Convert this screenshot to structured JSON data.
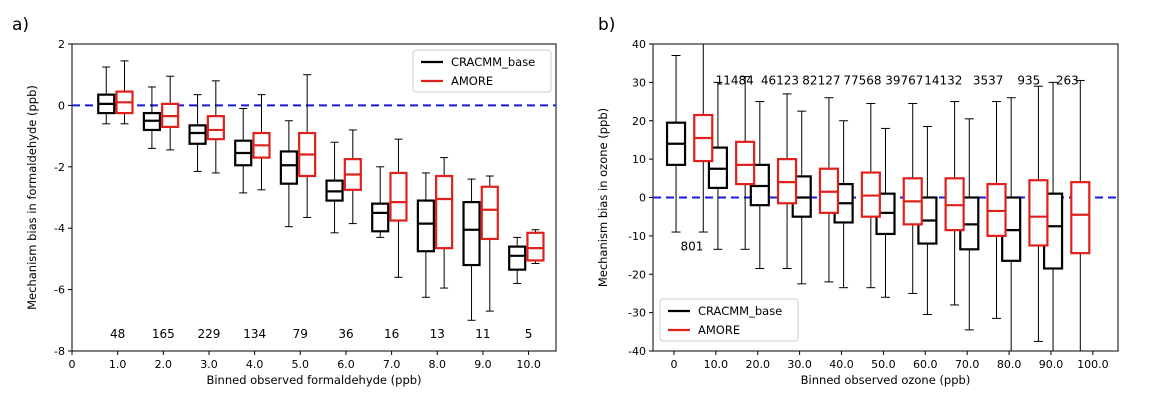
{
  "chart_data": [
    {
      "panel_label": "a)",
      "type": "box",
      "xlabel": "Binned observed formaldehyde (ppb)",
      "ylabel": "Mechanism bias in formaldehyde (ppb)",
      "xlim": [
        0,
        10.6
      ],
      "ylim": [
        -8,
        2
      ],
      "xticks": [
        0,
        1.0,
        2.0,
        3.0,
        4.0,
        5.0,
        6.0,
        7.0,
        8.0,
        9.0,
        10.0
      ],
      "xtick_labels": [
        "0",
        "1.0",
        "2.0",
        "3.0",
        "4.0",
        "5.0",
        "6.0",
        "7.0",
        "8.0",
        "9.0",
        "10.0"
      ],
      "yticks": [
        -8,
        -6,
        -4,
        -2,
        0,
        2
      ],
      "zero_line": 0,
      "legend": {
        "placement": "top-right",
        "entries": [
          "CRACMM_base",
          "AMORE"
        ]
      },
      "count_label_y": -7.45,
      "counts": [
        {
          "x": 1.0,
          "text": "48"
        },
        {
          "x": 2.0,
          "text": "165"
        },
        {
          "x": 3.0,
          "text": "229"
        },
        {
          "x": 4.0,
          "text": "134"
        },
        {
          "x": 5.0,
          "text": "79"
        },
        {
          "x": 6.0,
          "text": "36"
        },
        {
          "x": 7.0,
          "text": "16"
        },
        {
          "x": 8.0,
          "text": "13"
        },
        {
          "x": 9.0,
          "text": "11"
        },
        {
          "x": 10.0,
          "text": "5"
        }
      ],
      "series": [
        {
          "name": "CRACMM_base",
          "color": "#000000",
          "boxes": [
            {
              "x": 0.75,
              "whislo": -0.6,
              "q1": -0.25,
              "med": 0.05,
              "q3": 0.35,
              "whishi": 1.25
            },
            {
              "x": 1.75,
              "whislo": -1.4,
              "q1": -0.8,
              "med": -0.5,
              "q3": -0.25,
              "whishi": 0.6
            },
            {
              "x": 2.75,
              "whislo": -2.15,
              "q1": -1.25,
              "med": -0.9,
              "q3": -0.65,
              "whishi": 0.35
            },
            {
              "x": 3.75,
              "whislo": -2.85,
              "q1": -1.95,
              "med": -1.55,
              "q3": -1.15,
              "whishi": -0.1
            },
            {
              "x": 4.75,
              "whislo": -3.95,
              "q1": -2.55,
              "med": -1.95,
              "q3": -1.5,
              "whishi": -0.5
            },
            {
              "x": 5.75,
              "whislo": -4.15,
              "q1": -3.1,
              "med": -2.8,
              "q3": -2.45,
              "whishi": -1.2
            },
            {
              "x": 6.75,
              "whislo": -4.3,
              "q1": -4.1,
              "med": -3.5,
              "q3": -3.2,
              "whishi": -2.0
            },
            {
              "x": 7.75,
              "whislo": -6.25,
              "q1": -4.75,
              "med": -3.85,
              "q3": -3.1,
              "whishi": -2.2
            },
            {
              "x": 8.75,
              "whislo": -7.0,
              "q1": -5.2,
              "med": -4.05,
              "q3": -3.15,
              "whishi": -2.4
            },
            {
              "x": 9.75,
              "whislo": -5.8,
              "q1": -5.35,
              "med": -4.9,
              "q3": -4.6,
              "whishi": -4.3
            }
          ]
        },
        {
          "name": "AMORE",
          "color": "#e0201c",
          "boxes": [
            {
              "x": 1.15,
              "whislo": -0.6,
              "q1": -0.25,
              "med": 0.1,
              "q3": 0.45,
              "whishi": 1.45
            },
            {
              "x": 2.15,
              "whislo": -1.45,
              "q1": -0.7,
              "med": -0.35,
              "q3": 0.05,
              "whishi": 0.95
            },
            {
              "x": 3.15,
              "whislo": -2.2,
              "q1": -1.1,
              "med": -0.8,
              "q3": -0.35,
              "whishi": 0.8
            },
            {
              "x": 4.15,
              "whislo": -2.75,
              "q1": -1.7,
              "med": -1.3,
              "q3": -0.9,
              "whishi": 0.35
            },
            {
              "x": 5.15,
              "whislo": -3.65,
              "q1": -2.3,
              "med": -1.6,
              "q3": -0.9,
              "whishi": 1.0
            },
            {
              "x": 6.15,
              "whislo": -3.85,
              "q1": -2.75,
              "med": -2.25,
              "q3": -1.75,
              "whishi": -0.8
            },
            {
              "x": 7.15,
              "whislo": -5.6,
              "q1": -3.75,
              "med": -3.15,
              "q3": -2.2,
              "whishi": -1.1
            },
            {
              "x": 8.15,
              "whislo": -5.95,
              "q1": -4.65,
              "med": -3.05,
              "q3": -2.3,
              "whishi": -1.7
            },
            {
              "x": 9.15,
              "whislo": -6.7,
              "q1": -4.35,
              "med": -3.4,
              "q3": -2.65,
              "whishi": -2.3
            },
            {
              "x": 10.15,
              "whislo": -5.15,
              "q1": -5.05,
              "med": -4.65,
              "q3": -4.15,
              "whishi": -4.05
            }
          ]
        }
      ]
    },
    {
      "panel_label": "b)",
      "type": "box",
      "xlabel": "Binned observed ozone (ppb)",
      "ylabel": "Mechanism bias in ozone (ppb)",
      "xlim": [
        -5,
        106
      ],
      "ylim": [
        -40,
        40
      ],
      "xticks": [
        0,
        10,
        20,
        30,
        40,
        50,
        60,
        70,
        80,
        90,
        100
      ],
      "xtick_labels": [
        "0",
        "10.0",
        "20.0",
        "30.0",
        "40.0",
        "50.0",
        "60.0",
        "70.0",
        "80.0",
        "90.0",
        "100.0"
      ],
      "yticks": [
        -40,
        -30,
        -20,
        -10,
        0,
        10,
        20,
        30,
        40
      ],
      "zero_line": 0,
      "legend": {
        "placement": "bottom-left",
        "entries": [
          "CRACMM_base",
          "AMORE"
        ]
      },
      "counts": [
        {
          "x": 4.3,
          "y": -12.8,
          "text": "801"
        },
        {
          "x": 14.5,
          "y": 30.5,
          "text": "11484"
        },
        {
          "x": 25.3,
          "y": 30.5,
          "text": "46123"
        },
        {
          "x": 35.2,
          "y": 30.5,
          "text": "82127"
        },
        {
          "x": 45.0,
          "y": 30.5,
          "text": "77568"
        },
        {
          "x": 55.0,
          "y": 30.5,
          "text": "39767"
        },
        {
          "x": 64.3,
          "y": 30.5,
          "text": "14132"
        },
        {
          "x": 75.0,
          "y": 30.5,
          "text": "3537"
        },
        {
          "x": 84.7,
          "y": 30.5,
          "text": "935"
        },
        {
          "x": 93.9,
          "y": 30.5,
          "text": "263"
        }
      ],
      "series": [
        {
          "name": "CRACMM_base",
          "color": "#000000",
          "boxes": [
            {
              "x": 0.5,
              "whislo": -9,
              "q1": 8.5,
              "med": 14,
              "q3": 19.5,
              "whishi": 37
            },
            {
              "x": 10.5,
              "whislo": -13.5,
              "q1": 2.5,
              "med": 7.5,
              "q3": 13,
              "whishi": 30
            },
            {
              "x": 20.5,
              "whislo": -18.5,
              "q1": -2,
              "med": 3,
              "q3": 8.5,
              "whishi": 25
            },
            {
              "x": 30.5,
              "whislo": -22.5,
              "q1": -5,
              "med": 0,
              "q3": 5.5,
              "whishi": 22.5
            },
            {
              "x": 40.5,
              "whislo": -23.5,
              "q1": -6.5,
              "med": -1.5,
              "q3": 3.5,
              "whishi": 20
            },
            {
              "x": 50.5,
              "whislo": -26,
              "q1": -9.5,
              "med": -4,
              "q3": 1,
              "whishi": 18
            },
            {
              "x": 60.5,
              "whislo": -30.5,
              "q1": -12,
              "med": -6,
              "q3": 0,
              "whishi": 18.5
            },
            {
              "x": 70.5,
              "whislo": -34.5,
              "q1": -13.5,
              "med": -7,
              "q3": 0,
              "whishi": 20.5
            },
            {
              "x": 80.5,
              "whislo": -40,
              "q1": -16.5,
              "med": -8.5,
              "q3": 0,
              "whishi": 26
            },
            {
              "x": 90.5,
              "whislo": -40,
              "q1": -18.5,
              "med": -7.5,
              "q3": 1,
              "whishi": 30
            }
          ]
        },
        {
          "name": "AMORE",
          "color": "#e0201c",
          "boxes": [
            {
              "x": 7,
              "whislo": -9,
              "q1": 9.5,
              "med": 15.5,
              "q3": 21.5,
              "whishi": 40
            },
            {
              "x": 17,
              "whislo": -13.5,
              "q1": 3.5,
              "med": 8.5,
              "q3": 14.5,
              "whishi": 31.5
            },
            {
              "x": 27,
              "whislo": -18.5,
              "q1": -1.5,
              "med": 4,
              "q3": 10,
              "whishi": 27
            },
            {
              "x": 37,
              "whislo": -22,
              "q1": -4,
              "med": 1.5,
              "q3": 7.5,
              "whishi": 26
            },
            {
              "x": 47,
              "whislo": -23.5,
              "q1": -5,
              "med": 0.5,
              "q3": 6.5,
              "whishi": 24.5
            },
            {
              "x": 57,
              "whislo": -25,
              "q1": -7,
              "med": -1,
              "q3": 5,
              "whishi": 24.5
            },
            {
              "x": 67,
              "whislo": -28,
              "q1": -8.5,
              "med": -2,
              "q3": 5,
              "whishi": 25
            },
            {
              "x": 77,
              "whislo": -31.5,
              "q1": -10,
              "med": -3.5,
              "q3": 3.5,
              "whishi": 25
            },
            {
              "x": 87,
              "whislo": -37.5,
              "q1": -12.5,
              "med": -5,
              "q3": 4.5,
              "whishi": 29
            },
            {
              "x": 97,
              "whislo": -40,
              "q1": -14.5,
              "med": -4.5,
              "q3": 4,
              "whishi": 30.5
            }
          ]
        }
      ]
    }
  ]
}
